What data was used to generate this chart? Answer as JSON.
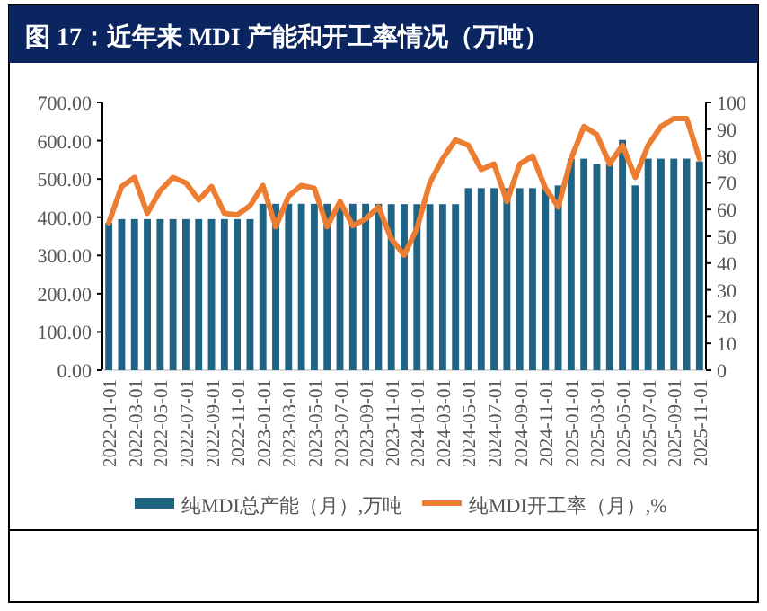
{
  "chart_data": {
    "type": "bar",
    "title": "图 17：近年来 MDI 产能和开工率情况（万吨）",
    "categories": [
      "2022-01-01",
      null,
      "2022-03-01",
      null,
      "2022-05-01",
      null,
      "2022-07-01",
      null,
      "2022-09-01",
      null,
      "2022-11-01",
      null,
      "2023-01-01",
      null,
      "2023-03-01",
      null,
      "2023-05-01",
      null,
      "2023-07-01",
      null,
      "2023-09-01",
      null,
      "2023-11-01",
      null,
      "2024-01-01",
      null,
      "2024-03-01",
      null,
      "2024-05-01",
      null,
      "2024-07-01",
      null,
      "2024-09-01",
      null,
      "2024-11-01",
      null,
      "2025-01-01",
      null,
      "2025-03-01",
      null,
      "2025-05-01",
      null,
      "2025-07-01",
      null,
      "2025-09-01",
      null,
      "2025-11-01"
    ],
    "series": [
      {
        "name": "纯MDI总产能（月）,万吨",
        "color": "#1f6385",
        "values": [
          385,
          395,
          395,
          395,
          395,
          395,
          395,
          395,
          395,
          395,
          395,
          395,
          435,
          435,
          435,
          435,
          435,
          435,
          435,
          435,
          435,
          435,
          434,
          434,
          434,
          434,
          434,
          434,
          476,
          476,
          476,
          476,
          476,
          476,
          476,
          483,
          553,
          553,
          539,
          539,
          602,
          483,
          553,
          553,
          553,
          553,
          546
        ]
      },
      {
        "name": "纯MDI开工率（月）,%",
        "type": "line",
        "axis": "y2",
        "color": "#ed7d31",
        "values": [
          55,
          68.6,
          72,
          58.6,
          67,
          72,
          70,
          63.6,
          68.6,
          58.6,
          58,
          61.4,
          69,
          53.6,
          65,
          69,
          68,
          53.6,
          63,
          54,
          56.4,
          61,
          49,
          43,
          53,
          70,
          79,
          86,
          84,
          75,
          77,
          63,
          77,
          80,
          68,
          61,
          79,
          91,
          88,
          77,
          84,
          72,
          84,
          91,
          94,
          94,
          79
        ]
      }
    ],
    "ylim": [
      0,
      700
    ],
    "yticks": [
      {
        "value": 0,
        "label": "0.00"
      },
      {
        "value": 100,
        "label": "100.00"
      },
      {
        "value": 200,
        "label": "200.00"
      },
      {
        "value": 300,
        "label": "300.00"
      },
      {
        "value": 400,
        "label": "400.00"
      },
      {
        "value": 500,
        "label": "500.00"
      },
      {
        "value": 600,
        "label": "600.00"
      },
      {
        "value": 700,
        "label": "700.00"
      }
    ],
    "y2lim": [
      0,
      100
    ],
    "y2ticks": [
      0,
      10,
      20,
      30,
      40,
      50,
      60,
      70,
      80,
      90,
      100
    ],
    "grid": false,
    "legend": "bottom"
  }
}
